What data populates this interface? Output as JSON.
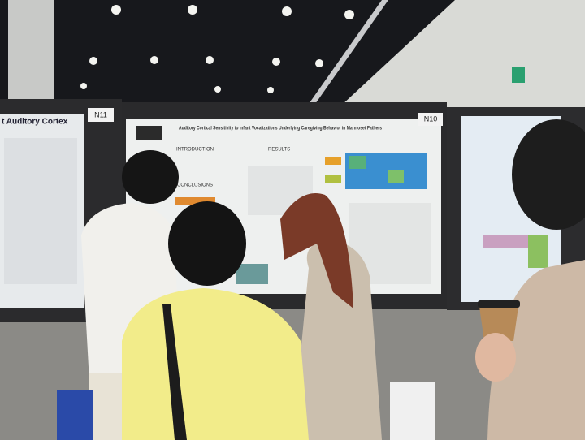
{
  "posters": [
    {
      "label": "N11",
      "title": "t Auditory Cortex"
    },
    {
      "label": "N10",
      "title": "Auditory Cortical Sensitivity to Infant Vocalizations Underlying Caregiving Behavior in Marmoset Fathers",
      "sections": [
        "INTRODUCTION",
        "RESULTS",
        "CONCLUSIONS"
      ]
    }
  ]
}
